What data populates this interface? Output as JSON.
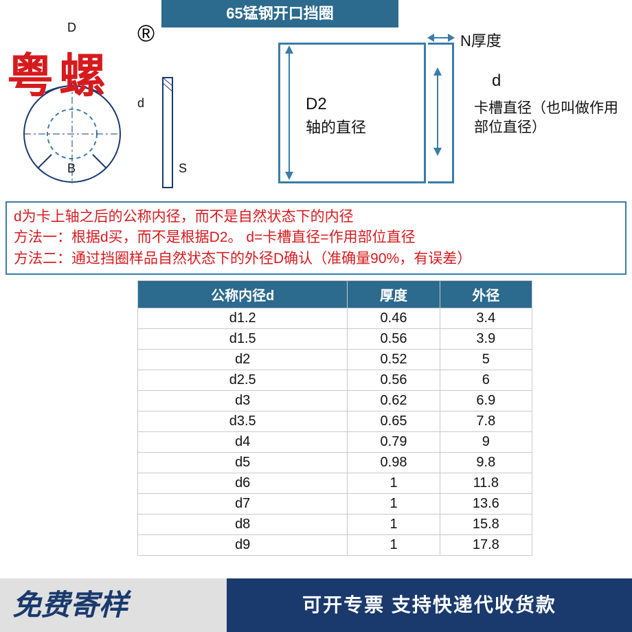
{
  "title": "65锰钢开口挡圈",
  "watermark": "粤螺",
  "watermark_symbol": "®",
  "left_diagram": {
    "labels": {
      "D": "D",
      "d": "d",
      "B": "B",
      "S": "S"
    },
    "colors": {
      "stroke": "#1a3a6e",
      "dashed": "#3a7ca8"
    }
  },
  "right_diagram": {
    "D2_label": "D2",
    "D2_sub": "轴的直径",
    "N_label": "N厚度",
    "d_label": "d",
    "slot_label": "卡槽直径（也叫做作用部位直径）",
    "colors": {
      "border": "#3a7ca8",
      "arrow": "#3a7ca8"
    }
  },
  "info": {
    "line1": "d为卡上轴之后的公称内径，而不是自然状态下的内径",
    "line2": "方法一：根据d买，而不是根据D2。 d=卡槽直径=作用部位直径",
    "line3": "方法二：通过挡圈样品自然状态下的外径D确认（准确量90%，有误差）",
    "text_color": "#d61b1f",
    "border_color": "#3a7ca8"
  },
  "table": {
    "header_bg": "#2c6a8e",
    "header_color": "#ffffff",
    "border_color": "#c9c9c9",
    "columns": [
      "公称内径d",
      "厚度",
      "外径"
    ],
    "rows": [
      [
        "d1.2",
        "0.46",
        "3.4"
      ],
      [
        "d1.5",
        "0.56",
        "3.9"
      ],
      [
        "d2",
        "0.52",
        "5"
      ],
      [
        "d2.5",
        "0.56",
        "6"
      ],
      [
        "d3",
        "0.62",
        "6.9"
      ],
      [
        "d3.5",
        "0.65",
        "7.8"
      ],
      [
        "d4",
        "0.79",
        "9"
      ],
      [
        "d5",
        "0.98",
        "9.8"
      ],
      [
        "d6",
        "1",
        "11.8"
      ],
      [
        "d7",
        "1",
        "13.6"
      ],
      [
        "d8",
        "1",
        "15.8"
      ],
      [
        "d9",
        "1",
        "17.8"
      ]
    ]
  },
  "footer": {
    "left": "免费寄样",
    "right": "可开专票 支持快递代收货款",
    "left_bg": "#e0e0e0",
    "left_color": "#1a3a6e",
    "right_bg": "#1a3a6e",
    "right_color": "#ffffff"
  }
}
